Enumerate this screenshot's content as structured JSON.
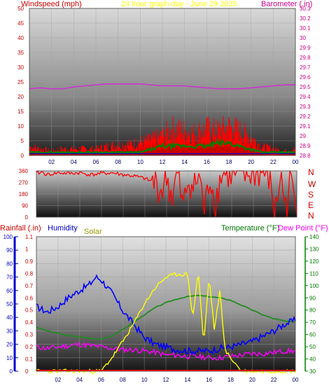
{
  "panel1": {
    "title": "24 hour graph day - June 29 2025",
    "left_label": "Windspeed (mph)",
    "right_label": "Barometer (.in)",
    "left_ticks": [
      "0",
      "5",
      "10",
      "15",
      "20",
      "25",
      "30",
      "35",
      "40",
      "45",
      "50"
    ],
    "right_ticks": [
      "28.8",
      "28.9",
      "29",
      "29.1",
      "29.2",
      "29.3",
      "29.4",
      "29.5",
      "29.6",
      "29.7",
      "29.8",
      "29.9",
      "30",
      "30.1",
      "30.2",
      "30.3"
    ],
    "x_ticks": [
      "02",
      "04",
      "06",
      "08",
      "10",
      "12",
      "14",
      "16",
      "18",
      "20",
      "22",
      "00"
    ]
  },
  "panel2": {
    "left_ticks": [
      "0",
      "90",
      "180",
      "270",
      "360"
    ],
    "compass": [
      "N",
      "W",
      "S",
      "E",
      "N"
    ],
    "x_ticks": [
      "02",
      "04",
      "06",
      "08",
      "10",
      "12",
      "14",
      "16",
      "18",
      "20",
      "22",
      "00"
    ]
  },
  "panel3": {
    "label_rain": "Rainfall (.in)",
    "label_humidity": "Humidity",
    "label_solar": "Solar",
    "label_temp": "Temperature (°F)",
    "label_dew": "Dew Point (°F)",
    "humidity_ticks": [
      "0",
      "10",
      "20",
      "30",
      "40",
      "50",
      "60",
      "70",
      "80",
      "90",
      "100"
    ],
    "rain_ticks": [
      "0",
      "0.1",
      "0.2",
      "0.3",
      "0.4",
      "0.5",
      "0.6",
      "0.7",
      "0.8",
      "0.9",
      "1",
      "1.1"
    ],
    "temp_ticks": [
      "30",
      "40",
      "50",
      "60",
      "70",
      "80",
      "90",
      "100",
      "110",
      "120",
      "130",
      "140"
    ],
    "x_ticks": [
      "02",
      "04",
      "06",
      "08",
      "10",
      "12",
      "14",
      "16",
      "18",
      "20",
      "22",
      "00"
    ]
  },
  "colors": {
    "wind": "#ff0000",
    "gust_dark": "#cc0000",
    "barometer": "#cc33cc",
    "wind_avg": "#008000",
    "wind_min": "#0000cc",
    "direction": "#ff0000",
    "humidity": "#0000ff",
    "solar": "#ffff00",
    "temperature": "#228b22",
    "dewpoint": "#ff00ff",
    "title": "#ffff00",
    "right_axis": "#cc0088"
  },
  "chart_data": [
    {
      "type": "line",
      "name": "wind-barometer",
      "x_unit": "hour",
      "ylim_left": [
        0,
        50
      ],
      "ylim_right": [
        28.8,
        30.3
      ],
      "series": [
        {
          "axis": "left",
          "style": "gust",
          "x": [
            0,
            1,
            2,
            3,
            4,
            5,
            6,
            7,
            8,
            9,
            10,
            11,
            12,
            13,
            14,
            15,
            16,
            17,
            18,
            19,
            20,
            21,
            22,
            23,
            24
          ],
          "y": [
            4,
            3,
            2,
            3,
            3,
            3,
            3,
            4,
            5,
            5,
            6,
            7,
            9,
            12,
            11,
            10,
            12,
            11,
            13,
            11,
            8,
            4,
            3,
            2,
            3
          ]
        },
        {
          "axis": "left",
          "style": "speed",
          "x": [
            0,
            2,
            4,
            6,
            8,
            10,
            11,
            12,
            14,
            16,
            17,
            18,
            19,
            20,
            21,
            22,
            24
          ],
          "y": [
            1,
            1,
            1,
            1,
            2,
            2,
            3,
            3,
            3,
            4,
            4,
            4,
            3,
            3,
            1,
            0,
            1
          ]
        },
        {
          "axis": "left",
          "style": "avg",
          "x": [
            0,
            2,
            4,
            6,
            8,
            10,
            11,
            12,
            14,
            16,
            17,
            18,
            19,
            20,
            21,
            22,
            24
          ],
          "y": [
            1,
            1,
            1,
            1,
            1,
            1,
            2,
            3,
            3,
            3,
            4,
            4,
            3,
            2,
            1,
            1,
            1
          ]
        },
        {
          "axis": "right",
          "style": "barometer",
          "x": [
            0,
            1,
            2,
            3,
            4,
            5,
            6,
            7,
            8,
            9,
            10,
            11,
            12,
            13,
            14,
            15,
            16,
            17,
            18,
            19,
            20,
            21,
            22,
            23,
            24
          ],
          "y": [
            29.48,
            29.49,
            29.48,
            29.48,
            29.5,
            29.51,
            29.52,
            29.53,
            29.53,
            29.53,
            29.53,
            29.52,
            29.51,
            29.51,
            29.51,
            29.5,
            29.49,
            29.48,
            29.48,
            29.48,
            29.49,
            29.5,
            29.51,
            29.52,
            29.52
          ]
        }
      ]
    },
    {
      "type": "line",
      "name": "wind-direction",
      "x_unit": "hour",
      "ylim": [
        0,
        360
      ],
      "series": [
        {
          "x": [
            0,
            0.5,
            1,
            2,
            3,
            4,
            5,
            6,
            7,
            8,
            9,
            10,
            11,
            11.5,
            12,
            12.5,
            13,
            13.5,
            14,
            14.5,
            15,
            15.5,
            16,
            16.5,
            17,
            17.5,
            18,
            18.5,
            19,
            20,
            21,
            21.5,
            22,
            22.5,
            23,
            23.5,
            24
          ],
          "y": [
            340,
            350,
            330,
            345,
            340,
            345,
            330,
            340,
            345,
            330,
            320,
            300,
            260,
            200,
            310,
            150,
            340,
            60,
            300,
            220,
            330,
            40,
            320,
            100,
            330,
            340,
            320,
            340,
            320,
            340,
            345,
            300,
            20,
            330,
            60,
            330,
            30
          ]
        }
      ]
    },
    {
      "type": "line",
      "name": "temperature-humidity",
      "x_unit": "hour",
      "ylim_humidity": [
        0,
        100
      ],
      "ylim_rain": [
        0,
        1.1
      ],
      "ylim_temp": [
        30,
        140
      ],
      "series": [
        {
          "axis": "humidity",
          "x": [
            0,
            1,
            2,
            3,
            4,
            5,
            5.5,
            6,
            7,
            8,
            9,
            10,
            11,
            12,
            13,
            14,
            15,
            16,
            17,
            18,
            19,
            20,
            21,
            22,
            23,
            24
          ],
          "y": [
            48,
            44,
            48,
            55,
            60,
            65,
            70,
            68,
            58,
            45,
            35,
            25,
            20,
            18,
            16,
            15,
            15,
            15,
            17,
            18,
            20,
            22,
            26,
            30,
            35,
            38
          ]
        },
        {
          "axis": "humidity",
          "x": [
            0,
            1,
            2,
            3,
            4,
            5,
            6,
            7,
            8,
            9,
            10,
            11,
            12,
            13,
            14,
            15,
            16,
            17,
            18,
            19,
            20,
            21,
            22,
            23,
            24
          ],
          "y": [
            18,
            17,
            18,
            19,
            20,
            19,
            18,
            17,
            16,
            16,
            15,
            14,
            12,
            12,
            11,
            11,
            10,
            10,
            11,
            12,
            13,
            13,
            14,
            15,
            15
          ]
        },
        {
          "axis": "humidity",
          "x": [
            0,
            5,
            6,
            7,
            8,
            9,
            10,
            11,
            12,
            13,
            14,
            14.5,
            15,
            15.5,
            16,
            16.5,
            17,
            17.5,
            18,
            18.5,
            19,
            20,
            24
          ],
          "y": [
            0,
            0,
            0,
            10,
            22,
            35,
            50,
            62,
            70,
            72,
            72,
            40,
            75,
            20,
            70,
            30,
            60,
            15,
            10,
            5,
            0,
            0,
            0
          ]
        },
        {
          "axis": "temp",
          "x": [
            0,
            1,
            2,
            3,
            4,
            5,
            6,
            7,
            8,
            9,
            10,
            11,
            12,
            13,
            14,
            15,
            16,
            17,
            18,
            19,
            20,
            21,
            22,
            23,
            24
          ],
          "y": [
            66,
            63,
            61,
            59,
            58,
            57,
            56,
            59,
            64,
            70,
            76,
            82,
            86,
            89,
            91,
            92,
            91,
            90,
            88,
            84,
            80,
            76,
            73,
            71,
            70
          ]
        }
      ]
    }
  ]
}
